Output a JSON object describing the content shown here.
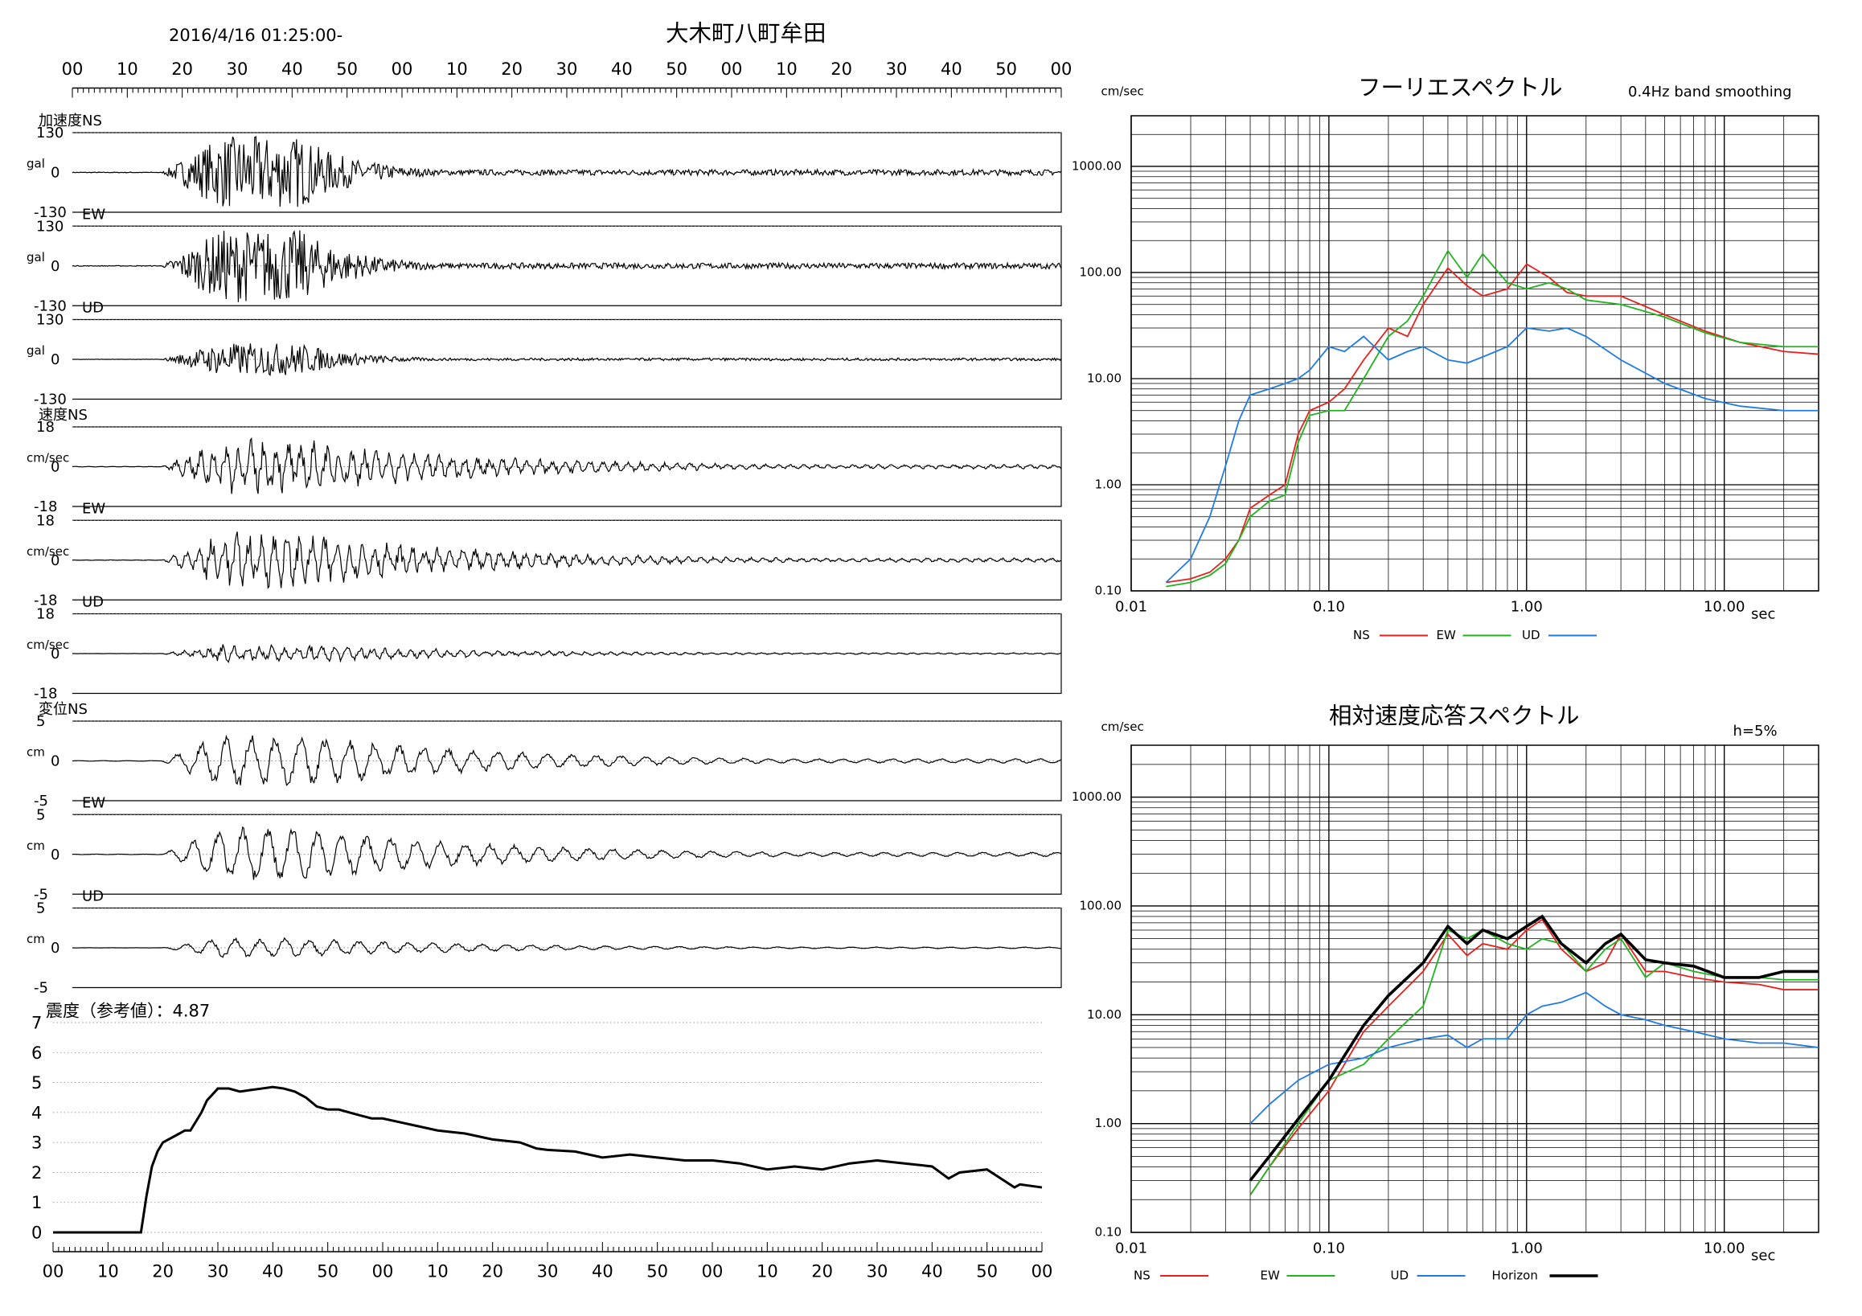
{
  "header": {
    "datetime": "2016/4/16 01:25:00-",
    "station": "大木町八町牟田"
  },
  "time_ticks": [
    "00",
    "10",
    "20",
    "30",
    "40",
    "50",
    "00",
    "10",
    "20",
    "30",
    "40",
    "50",
    "00",
    "10",
    "20",
    "30",
    "40",
    "50",
    "00"
  ],
  "intensity_ticks": [
    "00",
    "10",
    "20",
    "30",
    "40",
    "50",
    "00",
    "10",
    "20",
    "30",
    "40",
    "50",
    "00",
    "10",
    "20",
    "30",
    "40",
    "50",
    "00"
  ],
  "waveforms": {
    "acc_label": "加速度NS",
    "acc_unit": "gal",
    "acc_max": "130",
    "acc_min": "-130",
    "vel_label": "速度NS",
    "vel_unit": "cm/sec",
    "vel_max": "18",
    "vel_min": "-18",
    "disp_label": "変位NS",
    "disp_unit": "cm",
    "disp_max": "5",
    "disp_min": "-5",
    "zero": "0",
    "ew": "EW",
    "ud": "UD"
  },
  "intensity": {
    "label": "震度（参考値）：4.87",
    "y_ticks": [
      "7",
      "6",
      "5",
      "4",
      "3",
      "2",
      "1",
      "0"
    ]
  },
  "fourier": {
    "title": "フーリエスペクトル",
    "subtitle": "0.4Hz band smoothing",
    "unit": "cm/sec",
    "y_ticks": [
      "1000.00",
      "100.00",
      "10.00",
      "1.00",
      "0.10"
    ],
    "x_ticks": [
      "0.01",
      "0.10",
      "1.00",
      "10.00"
    ],
    "x_unit": "sec",
    "legend": [
      "NS",
      "EW",
      "UD"
    ]
  },
  "response": {
    "title": "相対速度応答スペクトル",
    "damping": "h=5%",
    "unit": "cm/sec",
    "y_ticks": [
      "1000.00",
      "100.00",
      "10.00",
      "1.00",
      "0.10"
    ],
    "x_ticks": [
      "0.01",
      "0.10",
      "1.00",
      "10.00"
    ],
    "x_unit": "sec",
    "legend": [
      "NS",
      "EW",
      "UD",
      "Horizon"
    ]
  },
  "colors": {
    "ns": "#e8201c",
    "ew": "#21b320",
    "ud": "#1f7be6",
    "horizon": "#000000"
  },
  "chart_data": [
    {
      "type": "line",
      "title": "震度（参考値）：4.87",
      "ylim": [
        0,
        7
      ],
      "x": [
        0,
        16,
        17,
        18,
        19,
        20,
        22,
        23,
        24,
        25,
        27,
        28,
        29,
        30,
        32,
        34,
        36,
        38,
        40,
        42,
        44,
        46,
        48,
        50,
        52,
        54,
        56,
        58,
        60,
        65,
        70,
        75,
        80,
        85,
        88,
        90,
        95,
        100,
        105,
        110,
        115,
        120,
        125,
        130,
        135,
        140,
        145,
        150,
        155,
        160,
        163,
        165,
        170,
        175,
        176,
        180
      ],
      "y": [
        0,
        0,
        1.2,
        2.2,
        2.7,
        3.0,
        3.2,
        3.3,
        3.4,
        3.4,
        4.0,
        4.4,
        4.6,
        4.8,
        4.8,
        4.7,
        4.75,
        4.8,
        4.85,
        4.8,
        4.7,
        4.5,
        4.2,
        4.1,
        4.1,
        4.0,
        3.9,
        3.8,
        3.8,
        3.6,
        3.4,
        3.3,
        3.1,
        3.0,
        2.8,
        2.75,
        2.7,
        2.5,
        2.6,
        2.5,
        2.4,
        2.4,
        2.3,
        2.1,
        2.2,
        2.1,
        2.3,
        2.4,
        2.3,
        2.2,
        1.8,
        2.0,
        2.1,
        1.5,
        1.6,
        1.5
      ]
    },
    {
      "type": "line",
      "title": "フーリエスペクトル",
      "xscale": "log",
      "yscale": "log",
      "xlim": [
        0.01,
        30
      ],
      "ylim": [
        0.1,
        3000
      ],
      "xlabel": "sec",
      "series": [
        {
          "name": "NS",
          "x": [
            0.015,
            0.02,
            0.025,
            0.03,
            0.035,
            0.04,
            0.05,
            0.06,
            0.07,
            0.08,
            0.1,
            0.12,
            0.15,
            0.2,
            0.25,
            0.3,
            0.4,
            0.5,
            0.6,
            0.8,
            1.0,
            1.3,
            1.6,
            2.0,
            3.0,
            5.0,
            8.0,
            12.0,
            20.0,
            30.0
          ],
          "y": [
            0.12,
            0.13,
            0.15,
            0.2,
            0.3,
            0.6,
            0.8,
            1.0,
            3.0,
            5.0,
            6.0,
            8.0,
            15.0,
            30.0,
            25.0,
            50.0,
            110.0,
            75.0,
            60.0,
            70.0,
            120.0,
            90.0,
            65.0,
            60.0,
            60.0,
            40.0,
            28.0,
            22.0,
            18.0,
            17.0
          ]
        },
        {
          "name": "EW",
          "x": [
            0.015,
            0.02,
            0.025,
            0.03,
            0.035,
            0.04,
            0.05,
            0.06,
            0.07,
            0.08,
            0.1,
            0.12,
            0.15,
            0.2,
            0.25,
            0.3,
            0.4,
            0.5,
            0.6,
            0.8,
            1.0,
            1.3,
            1.6,
            2.0,
            3.0,
            5.0,
            8.0,
            12.0,
            20.0,
            30.0
          ],
          "y": [
            0.11,
            0.12,
            0.14,
            0.18,
            0.3,
            0.5,
            0.7,
            0.8,
            2.5,
            4.5,
            5.0,
            5.0,
            10.0,
            25.0,
            35.0,
            60.0,
            160.0,
            90.0,
            150.0,
            80.0,
            70.0,
            80.0,
            70.0,
            55.0,
            50.0,
            38.0,
            27.0,
            22.0,
            20.0,
            20.0
          ]
        },
        {
          "name": "UD",
          "x": [
            0.015,
            0.02,
            0.025,
            0.03,
            0.035,
            0.04,
            0.05,
            0.06,
            0.07,
            0.08,
            0.1,
            0.12,
            0.15,
            0.2,
            0.25,
            0.3,
            0.4,
            0.5,
            0.6,
            0.8,
            1.0,
            1.3,
            1.6,
            2.0,
            3.0,
            5.0,
            8.0,
            12.0,
            20.0,
            30.0
          ],
          "y": [
            0.12,
            0.2,
            0.5,
            1.5,
            4.0,
            7.0,
            8.0,
            9.0,
            10.0,
            12.0,
            20.0,
            18.0,
            25.0,
            15.0,
            18.0,
            20.0,
            15.0,
            14.0,
            16.0,
            20.0,
            30.0,
            28.0,
            30.0,
            25.0,
            15.0,
            9.0,
            6.5,
            5.5,
            5.0,
            5.0
          ]
        }
      ]
    },
    {
      "type": "line",
      "title": "相対速度応答スペクトル",
      "xscale": "log",
      "yscale": "log",
      "xlim": [
        0.01,
        30
      ],
      "ylim": [
        0.1,
        3000
      ],
      "xlabel": "sec",
      "series": [
        {
          "name": "NS",
          "x": [
            0.04,
            0.05,
            0.07,
            0.1,
            0.15,
            0.2,
            0.3,
            0.4,
            0.5,
            0.6,
            0.8,
            1.0,
            1.2,
            1.5,
            2.0,
            2.5,
            3.0,
            4.0,
            5.0,
            7.0,
            10.0,
            15.0,
            20.0,
            30.0
          ],
          "y": [
            0.22,
            0.4,
            0.9,
            2.0,
            7.0,
            12.0,
            25.0,
            55.0,
            35.0,
            45.0,
            40.0,
            60.0,
            75.0,
            40.0,
            25.0,
            30.0,
            55.0,
            25.0,
            25.0,
            22.0,
            20.0,
            19.0,
            17.0,
            17.0
          ]
        },
        {
          "name": "EW",
          "x": [
            0.04,
            0.05,
            0.07,
            0.1,
            0.15,
            0.2,
            0.3,
            0.4,
            0.5,
            0.6,
            0.8,
            1.0,
            1.2,
            1.5,
            2.0,
            2.5,
            3.0,
            4.0,
            5.0,
            7.0,
            10.0,
            15.0,
            20.0,
            30.0
          ],
          "y": [
            0.22,
            0.4,
            1.0,
            2.5,
            3.5,
            6.0,
            12.0,
            60.0,
            50.0,
            60.0,
            45.0,
            40.0,
            50.0,
            45.0,
            25.0,
            40.0,
            50.0,
            22.0,
            30.0,
            25.0,
            22.0,
            22.0,
            21.0,
            21.0
          ]
        },
        {
          "name": "UD",
          "x": [
            0.04,
            0.05,
            0.07,
            0.1,
            0.15,
            0.2,
            0.3,
            0.4,
            0.5,
            0.6,
            0.8,
            1.0,
            1.2,
            1.5,
            2.0,
            2.5,
            3.0,
            4.0,
            5.0,
            7.0,
            10.0,
            15.0,
            20.0,
            30.0
          ],
          "y": [
            1.0,
            1.5,
            2.5,
            3.5,
            4.0,
            5.0,
            6.0,
            6.5,
            5.0,
            6.0,
            6.0,
            10.0,
            12.0,
            13.0,
            16.0,
            12.0,
            10.0,
            9.0,
            8.0,
            7.0,
            6.0,
            5.5,
            5.5,
            5.0
          ]
        },
        {
          "name": "Horizon",
          "x": [
            0.04,
            0.05,
            0.07,
            0.1,
            0.15,
            0.2,
            0.3,
            0.4,
            0.5,
            0.6,
            0.8,
            1.0,
            1.2,
            1.5,
            2.0,
            2.5,
            3.0,
            4.0,
            5.0,
            7.0,
            10.0,
            15.0,
            20.0,
            30.0
          ],
          "y": [
            0.3,
            0.5,
            1.1,
            2.5,
            8.0,
            15.0,
            30.0,
            65.0,
            45.0,
            60.0,
            50.0,
            65.0,
            80.0,
            45.0,
            30.0,
            45.0,
            55.0,
            32.0,
            30.0,
            28.0,
            22.0,
            22.0,
            25.0,
            25.0
          ]
        }
      ]
    }
  ]
}
